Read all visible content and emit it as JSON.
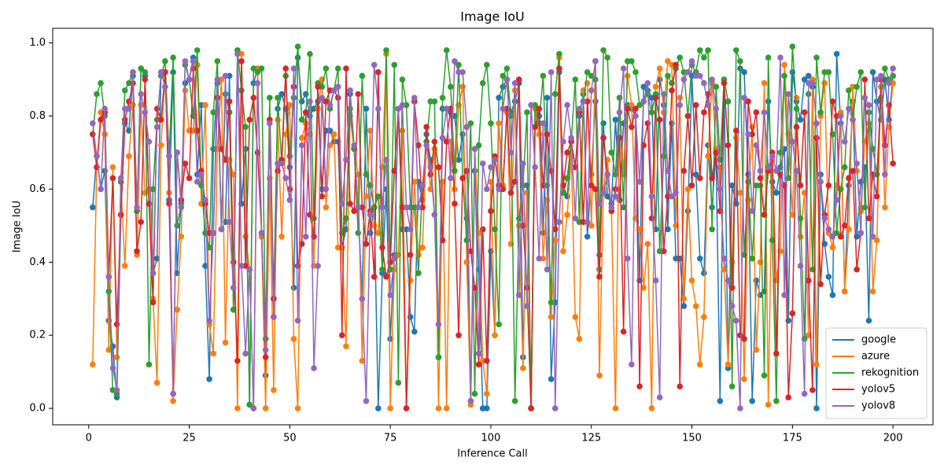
{
  "chart_data": {
    "type": "line",
    "title": "Image IoU",
    "x_label": "Inference Call",
    "y_label": "Image IoU",
    "x": [
      1,
      2,
      3,
      4,
      5,
      6,
      7,
      8,
      9,
      10,
      11,
      12,
      13,
      14,
      15,
      16,
      17,
      18,
      19,
      20,
      21,
      22,
      23,
      24,
      25,
      26,
      27,
      28,
      29,
      30,
      31,
      32,
      33,
      34,
      35,
      36,
      37,
      38,
      39,
      40,
      41,
      42,
      43,
      44,
      45,
      46,
      47,
      48,
      49,
      50,
      51,
      52,
      53,
      54,
      55,
      56,
      57,
      58,
      59,
      60,
      61,
      62,
      63,
      64,
      65,
      66,
      67,
      68,
      69,
      70,
      71,
      72,
      73,
      74,
      75,
      76,
      77,
      78,
      79,
      80,
      81,
      82,
      83,
      84,
      85,
      86,
      87,
      88,
      89,
      90,
      91,
      92,
      93,
      94,
      95,
      96,
      97,
      98,
      99,
      100,
      101,
      102,
      103,
      104,
      105,
      106,
      107,
      108,
      109,
      110,
      111,
      112,
      113,
      114,
      115,
      116,
      117,
      118,
      119,
      120,
      121,
      122,
      123,
      124,
      125,
      126,
      127,
      128,
      129,
      130,
      131,
      132,
      133,
      134,
      135,
      136,
      137,
      138,
      139,
      140,
      141,
      142,
      143,
      144,
      145,
      146,
      147,
      148,
      149,
      150,
      151,
      152,
      153,
      154,
      155,
      156,
      157,
      158,
      159,
      160,
      161,
      162,
      163,
      164,
      165,
      166,
      167,
      168,
      169,
      170,
      171,
      172,
      173,
      174,
      175,
      176,
      177,
      178,
      179,
      180,
      181,
      182,
      183,
      184,
      185,
      186,
      187,
      188,
      189,
      190,
      191,
      192,
      193,
      194,
      195,
      196,
      197,
      198,
      199,
      200
    ],
    "series": [
      {
        "name": "google",
        "color": "#1f77b4",
        "values": [
          0.55,
          0.69,
          0.6,
          0.65,
          0.24,
          0.17,
          0.03,
          0.53,
          0.78,
          0.76,
          0.91,
          0.54,
          0.93,
          0.91,
          0.56,
          0.37,
          0.41,
          0.92,
          0.92,
          0.57,
          0.92,
          0.37,
          0.57,
          0.89,
          0.9,
          0.96,
          0.64,
          0.83,
          0.39,
          0.08,
          0.71,
          0.89,
          0.49,
          0.51,
          0.91,
          0.27,
          0.97,
          0.56,
          0.71,
          0.01,
          0.89,
          0.93,
          0.48,
          0.09,
          0.79,
          0.25,
          0.82,
          0.86,
          0.82,
          0.66,
          0.33,
          0.96,
          0.84,
          0.86,
          0.8,
          0.82,
          0.84,
          0.6,
          0.76,
          0.76,
          0.73,
          0.73,
          0.44,
          0.49,
          0.86,
          0.71,
          0.55,
          0.3,
          0.82,
          0.48,
          0.55,
          0.0,
          0.37,
          0.6,
          0.19,
          0.42,
          0.82,
          0.49,
          0.49,
          0.25,
          0.21,
          0.62,
          0.57,
          0.75,
          0.68,
          0.53,
          0.14,
          0.82,
          0.82,
          0.81,
          0.8,
          0.68,
          0.75,
          0.52,
          0.02,
          0.65,
          0.38,
          0.0,
          0.0,
          0.43,
          0.2,
          0.85,
          0.88,
          0.9,
          0.81,
          0.84,
          0.89,
          0.14,
          0.61,
          0.0,
          0.82,
          0.8,
          0.48,
          0.85,
          0.08,
          0.29,
          0.92,
          0.61,
          0.58,
          0.73,
          0.66,
          0.8,
          0.86,
          0.47,
          0.64,
          0.84,
          0.38,
          0.78,
          0.58,
          0.56,
          0.79,
          0.57,
          0.78,
          0.83,
          0.82,
          0.8,
          0.35,
          0.88,
          0.87,
          0.85,
          0.49,
          0.9,
          0.83,
          0.49,
          0.78,
          0.41,
          0.41,
          0.28,
          0.54,
          0.91,
          0.64,
          0.41,
          0.37,
          0.72,
          0.55,
          0.7,
          0.02,
          0.89,
          0.11,
          0.61,
          0.56,
          0.93,
          0.92,
          0.64,
          0.02,
          0.35,
          0.31,
          0.32,
          0.84,
          0.62,
          0.59,
          0.66,
          0.71,
          0.24,
          0.92,
          0.84,
          0.79,
          0.9,
          0.91,
          0.88,
          0.0,
          0.64,
          0.45,
          0.36,
          0.31,
          0.97,
          0.78,
          0.32,
          0.61,
          0.84,
          0.47,
          0.62,
          0.66,
          0.24,
          0.92,
          0.84,
          0.79,
          0.9,
          0.79,
          0.91
        ]
      },
      {
        "name": "azure",
        "color": "#ff7f0e",
        "values": [
          0.12,
          0.66,
          0.81,
          0.75,
          0.16,
          0.66,
          0.14,
          0.62,
          0.39,
          0.69,
          0.83,
          0.42,
          0.83,
          0.59,
          0.6,
          0.3,
          0.07,
          0.72,
          0.92,
          0.59,
          0.02,
          0.27,
          0.47,
          0.87,
          0.76,
          0.76,
          0.94,
          0.56,
          0.83,
          0.23,
          0.15,
          0.71,
          0.9,
          0.18,
          0.68,
          0.64,
          0.0,
          0.97,
          0.47,
          0.38,
          0.0,
          0.93,
          0.47,
          0.0,
          0.63,
          0.05,
          0.79,
          0.47,
          0.75,
          0.83,
          0.19,
          0.0,
          0.74,
          0.78,
          0.75,
          0.39,
          0.82,
          0.9,
          0.55,
          0.72,
          0.75,
          0.44,
          0.44,
          0.17,
          0.8,
          0.71,
          0.64,
          0.13,
          0.58,
          0.76,
          0.5,
          0.48,
          0.66,
          0.97,
          0.0,
          0.38,
          0.42,
          0.76,
          0.0,
          0.35,
          0.62,
          0.42,
          0.44,
          0.73,
          0.6,
          0.71,
          0.0,
          0.62,
          0.0,
          0.73,
          0.6,
          0.83,
          0.88,
          0.4,
          0.01,
          0.71,
          0.48,
          0.13,
          0.04,
          0.62,
          0.2,
          0.78,
          0.61,
          0.81,
          0.45,
          0.87,
          0.5,
          0.11,
          0.59,
          0.0,
          0.82,
          0.75,
          0.41,
          0.57,
          0.25,
          0.46,
          0.96,
          0.43,
          0.53,
          0.69,
          0.25,
          0.19,
          0.87,
          0.89,
          0.5,
          0.95,
          0.09,
          0.6,
          0.68,
          0.54,
          0.0,
          0.85,
          0.64,
          0.91,
          0.83,
          0.52,
          0.49,
          0.33,
          0.45,
          0.0,
          0.88,
          0.93,
          0.81,
          0.95,
          0.94,
          0.5,
          0.85,
          0.3,
          0.6,
          0.35,
          0.28,
          0.12,
          0.25,
          0.69,
          0.89,
          0.71,
          0.66,
          0.38,
          0.12,
          0.4,
          0.74,
          0.59,
          0.08,
          0.57,
          0.77,
          0.16,
          0.4,
          0.89,
          0.01,
          0.68,
          0.35,
          0.43,
          0.94,
          0.75,
          0.53,
          0.85,
          0.47,
          0.59,
          0.2,
          0.9,
          0.12,
          0.8,
          0.89,
          0.48,
          0.44,
          0.61,
          0.81,
          0.32,
          0.49,
          0.88,
          0.65,
          0.54,
          0.73,
          0.78,
          0.32,
          0.46,
          0.88,
          0.55,
          0.77,
          0.89
        ]
      },
      {
        "name": "rekognition",
        "color": "#2ca02c",
        "values": [
          0.75,
          0.86,
          0.89,
          0.8,
          0.32,
          0.05,
          0.04,
          0.62,
          0.87,
          0.89,
          0.92,
          0.54,
          0.93,
          0.92,
          0.12,
          0.6,
          0.79,
          0.91,
          0.95,
          0.69,
          0.96,
          0.5,
          0.56,
          0.94,
          0.9,
          0.8,
          0.98,
          0.61,
          0.48,
          0.44,
          0.81,
          0.95,
          0.49,
          0.86,
          0.81,
          0.27,
          0.98,
          0.87,
          0.77,
          0.01,
          0.93,
          0.92,
          0.93,
          0.19,
          0.85,
          0.3,
          0.85,
          0.67,
          0.91,
          0.69,
          0.85,
          0.99,
          0.79,
          0.81,
          0.97,
          0.52,
          0.89,
          0.88,
          0.93,
          0.82,
          0.87,
          0.93,
          0.48,
          0.52,
          0.82,
          0.71,
          0.48,
          0.91,
          0.64,
          0.61,
          0.55,
          0.58,
          0.38,
          0.98,
          0.38,
          0.94,
          0.07,
          0.9,
          0.83,
          0.55,
          0.55,
          0.37,
          0.61,
          0.73,
          0.84,
          0.84,
          0.14,
          0.85,
          0.98,
          0.88,
          0.65,
          0.94,
          0.63,
          0.46,
          0.78,
          0.04,
          0.72,
          0.89,
          0.94,
          0.78,
          0.49,
          0.23,
          0.91,
          0.93,
          0.8,
          0.02,
          0.52,
          0.61,
          0.81,
          0.0,
          0.83,
          0.78,
          0.91,
          0.61,
          0.29,
          0.86,
          0.97,
          0.59,
          0.63,
          0.73,
          0.9,
          0.51,
          0.84,
          0.92,
          0.91,
          0.9,
          0.42,
          0.98,
          0.96,
          0.7,
          0.64,
          0.85,
          0.55,
          0.95,
          0.95,
          0.92,
          0.83,
          0.84,
          0.86,
          0.81,
          0.86,
          0.43,
          0.69,
          0.91,
          0.89,
          0.93,
          0.96,
          0.92,
          0.8,
          0.94,
          0.92,
          0.98,
          0.96,
          0.98,
          0.49,
          0.88,
          0.68,
          0.9,
          0.84,
          0.06,
          0.98,
          0.95,
          0.42,
          0.62,
          0.41,
          0.61,
          0.61,
          0.09,
          0.96,
          0.46,
          0.02,
          0.7,
          0.91,
          0.63,
          0.99,
          0.82,
          0.52,
          0.19,
          0.86,
          0.38,
          0.96,
          0.81,
          0.92,
          0.92,
          0.75,
          0.48,
          0.6,
          0.66,
          0.87,
          0.79,
          0.88,
          0.92,
          0.55,
          0.81,
          0.71,
          0.64,
          0.85,
          0.93,
          0.9,
          0.91
        ]
      },
      {
        "name": "yolov5",
        "color": "#d62728",
        "values": [
          0.75,
          0.66,
          0.79,
          0.81,
          0.36,
          0.63,
          0.23,
          0.53,
          0.79,
          0.84,
          0.89,
          0.43,
          0.51,
          0.9,
          0.56,
          0.29,
          0.82,
          0.79,
          0.92,
          0.56,
          0.04,
          0.7,
          0.57,
          0.67,
          0.63,
          0.93,
          0.76,
          0.65,
          0.56,
          0.48,
          0.48,
          0.85,
          0.71,
          0.68,
          0.84,
          0.4,
          0.13,
          0.95,
          0.39,
          0.79,
          0.85,
          0.7,
          0.48,
          0.14,
          0.79,
          0.3,
          0.65,
          0.68,
          0.93,
          0.6,
          0.88,
          0.39,
          0.45,
          0.81,
          0.53,
          0.47,
          0.88,
          0.58,
          0.84,
          0.87,
          0.87,
          0.85,
          0.2,
          0.93,
          0.56,
          0.54,
          0.86,
          0.55,
          0.45,
          0.54,
          0.36,
          0.92,
          0.44,
          0.36,
          0.4,
          0.65,
          0.82,
          0.55,
          0.0,
          0.42,
          0.84,
          0.72,
          0.55,
          0.77,
          0.64,
          0.73,
          0.66,
          0.46,
          0.73,
          0.82,
          0.56,
          0.2,
          0.63,
          0.65,
          0.43,
          0.33,
          0.12,
          0.49,
          0.13,
          0.54,
          0.69,
          0.61,
          0.6,
          0.82,
          0.59,
          0.62,
          0.9,
          0.5,
          0.33,
          0.0,
          0.77,
          0.82,
          0.61,
          0.75,
          0.65,
          0.49,
          0.93,
          0.61,
          0.7,
          0.73,
          0.66,
          0.81,
          0.51,
          0.84,
          0.61,
          0.6,
          0.36,
          0.74,
          0.64,
          0.54,
          0.6,
          0.74,
          0.21,
          0.82,
          0.77,
          0.82,
          0.06,
          0.72,
          0.78,
          0.52,
          0.85,
          0.79,
          0.43,
          0.58,
          0.87,
          0.94,
          0.06,
          0.65,
          0.8,
          0.61,
          0.83,
          0.63,
          0.81,
          0.86,
          0.63,
          0.7,
          0.54,
          0.89,
          0.72,
          0.33,
          0.76,
          0.2,
          0.19,
          0.84,
          0.75,
          0.81,
          0.63,
          0.53,
          0.65,
          0.7,
          0.15,
          0.64,
          0.61,
          0.03,
          0.26,
          0.77,
          0.61,
          0.81,
          0.35,
          0.05,
          0.74,
          0.34,
          0.53,
          0.61,
          0.84,
          0.8,
          0.47,
          0.5,
          0.63,
          0.65,
          0.38,
          0.48,
          0.9,
          0.52,
          0.64,
          0.58,
          0.9,
          0.72,
          0.83,
          0.67
        ]
      },
      {
        "name": "yolov8",
        "color": "#9467bd",
        "values": [
          0.78,
          0.69,
          0.6,
          0.82,
          0.36,
          0.11,
          0.05,
          0.63,
          0.82,
          0.82,
          0.92,
          0.55,
          0.86,
          0.81,
          0.73,
          0.37,
          0.77,
          0.92,
          0.88,
          0.69,
          0.04,
          0.7,
          0.55,
          0.95,
          0.9,
          0.95,
          0.62,
          0.64,
          0.57,
          0.24,
          0.48,
          0.9,
          0.49,
          0.91,
          0.51,
          0.33,
          0.97,
          0.39,
          0.15,
          0.38,
          0.0,
          0.89,
          0.48,
          0.16,
          0.78,
          0.25,
          0.67,
          0.67,
          0.63,
          0.57,
          0.93,
          0.24,
          0.72,
          0.47,
          0.84,
          0.11,
          0.39,
          0.85,
          0.6,
          0.83,
          0.87,
          0.88,
          0.56,
          0.68,
          0.87,
          0.72,
          0.55,
          0.3,
          0.02,
          0.53,
          0.94,
          0.82,
          0.55,
          0.68,
          0.31,
          0.41,
          0.82,
          0.83,
          0.55,
          0.49,
          0.85,
          0.55,
          0.61,
          0.72,
          0.66,
          0.53,
          0.23,
          0.74,
          0.82,
          0.63,
          0.95,
          0.92,
          0.92,
          0.77,
          0.02,
          0.71,
          0.15,
          0.67,
          0.6,
          0.66,
          0.68,
          0.6,
          0.82,
          0.9,
          0.7,
          0.89,
          0.31,
          0.67,
          0.28,
          0.83,
          0.66,
          0.41,
          0.78,
          0.38,
          0.92,
          0.0,
          0.51,
          0.73,
          0.83,
          0.74,
          0.52,
          0.82,
          0.84,
          0.51,
          0.87,
          0.95,
          0.56,
          0.59,
          0.64,
          0.55,
          0.58,
          0.81,
          0.93,
          0.41,
          0.12,
          0.8,
          0.62,
          0.84,
          0.89,
          0.58,
          0.35,
          0.03,
          0.86,
          0.65,
          0.58,
          0.59,
          0.83,
          0.9,
          0.92,
          0.95,
          0.91,
          0.91,
          0.89,
          0.83,
          0.9,
          0.82,
          0.6,
          0.41,
          0.35,
          0.28,
          0.24,
          0.0,
          0.85,
          0.75,
          0.54,
          0.72,
          0.65,
          0.81,
          0.66,
          0.69,
          0.65,
          0.96,
          0.31,
          0.86,
          0.73,
          0.65,
          0.39,
          0.04,
          0.89,
          0.89,
          0.78,
          0.62,
          0.52,
          0.49,
          0.47,
          0.57,
          0.8,
          0.73,
          0.82,
          0.79,
          0.67,
          0.48,
          0.85,
          0.83,
          0.47,
          0.9,
          0.91,
          0.64,
          0.89,
          0.93
        ]
      }
    ],
    "xlim": [
      -8.95,
      209.95
    ],
    "ylim": [
      -0.045,
      1.04
    ],
    "xticks": [
      0,
      25,
      50,
      75,
      100,
      125,
      150,
      175,
      200
    ],
    "yticks": [
      {
        "value": 0,
        "label": "0.0"
      },
      {
        "value": 0.2,
        "label": "0.2"
      },
      {
        "value": 0.4,
        "label": "0.4"
      },
      {
        "value": 0.6,
        "label": "0.6"
      },
      {
        "value": 0.8,
        "label": "0.8"
      },
      {
        "value": 1,
        "label": "1.0"
      }
    ],
    "grid": false,
    "legend": "lower right"
  }
}
